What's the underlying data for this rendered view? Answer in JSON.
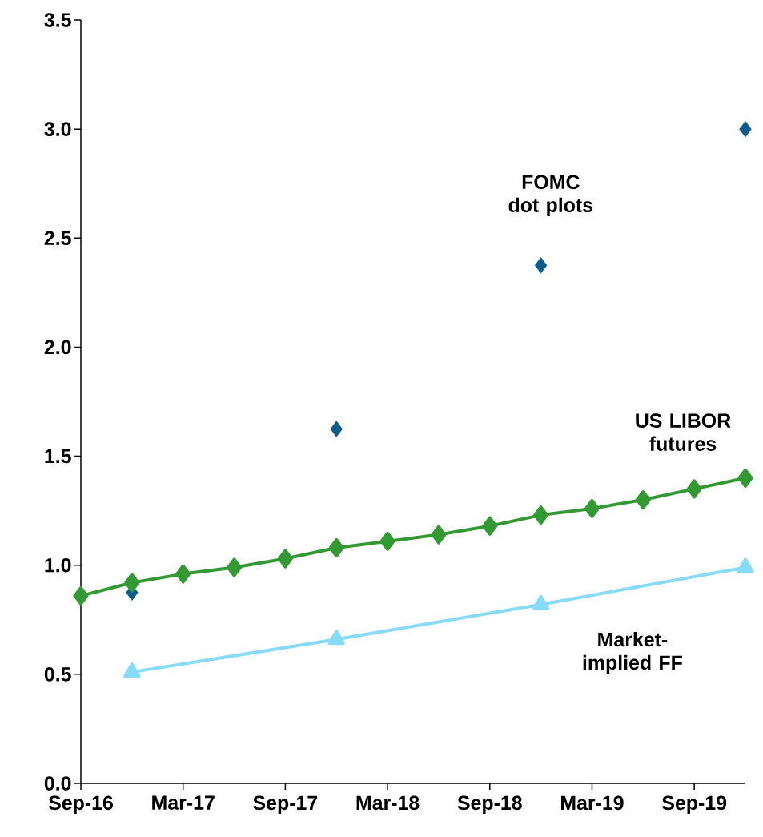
{
  "chart_data": {
    "type": "line",
    "xlim": [
      "2016-09",
      "2019-12"
    ],
    "xticks": [
      {
        "value": "2016-09",
        "label": "Sep-16"
      },
      {
        "value": "2017-03",
        "label": "Mar-17"
      },
      {
        "value": "2017-09",
        "label": "Sep-17"
      },
      {
        "value": "2018-03",
        "label": "Mar-18"
      },
      {
        "value": "2018-09",
        "label": "Sep-18"
      },
      {
        "value": "2019-03",
        "label": "Mar-19"
      },
      {
        "value": "2019-09",
        "label": "Sep-19"
      }
    ],
    "ylim": [
      0,
      3.5
    ],
    "yticks": [
      {
        "value": 0,
        "label": "0.0"
      },
      0.5,
      {
        "value": 1,
        "label": "1.0"
      },
      1.5,
      {
        "value": 2,
        "label": "2.0"
      },
      2.5,
      {
        "value": 3,
        "label": "3.0"
      },
      3.5
    ],
    "grid": false,
    "legend": false,
    "series": [
      {
        "name": "FOMC dot plots",
        "type": "scatter",
        "marker": "diamond",
        "color": "#0b5c8a",
        "x": [
          "2016-12",
          "2017-12",
          "2018-12",
          "2019-12"
        ],
        "values": [
          0.875,
          1.625,
          2.375,
          3.0
        ]
      },
      {
        "name": "US LIBOR futures",
        "marker": "diamond",
        "color": "#339933",
        "x": [
          "2016-09",
          "2016-12",
          "2017-03",
          "2017-06",
          "2017-09",
          "2017-12",
          "2018-03",
          "2018-06",
          "2018-09",
          "2018-12",
          "2019-03",
          "2019-06",
          "2019-09",
          "2019-12"
        ],
        "values": [
          0.86,
          0.92,
          0.96,
          0.99,
          1.03,
          1.08,
          1.11,
          1.14,
          1.18,
          1.23,
          1.26,
          1.3,
          1.35,
          1.4
        ]
      },
      {
        "name": "Market-implied FF",
        "type": "line",
        "marker": "triangle",
        "color": "#87daf8",
        "x": [
          "2016-12",
          "2017-12",
          "2018-12",
          "2019-12"
        ],
        "values": [
          0.51,
          0.66,
          0.82,
          0.99
        ]
      }
    ]
  }
}
